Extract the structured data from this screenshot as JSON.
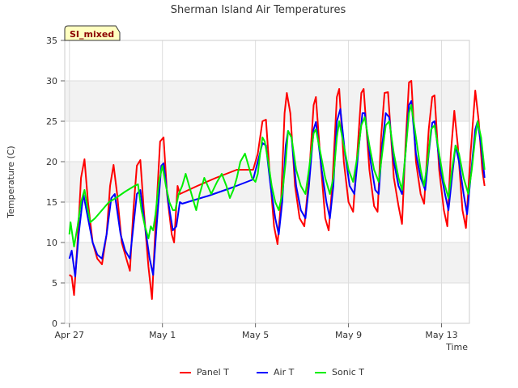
{
  "chart_data": {
    "type": "line",
    "title": "Sherman Island Air Temperatures",
    "badge": "SI_mixed",
    "xlabel": "Time",
    "ylabel": "Temperature (C)",
    "xlim": [
      -0.2,
      17.2
    ],
    "ylim": [
      0,
      35
    ],
    "yticks": [
      0,
      5,
      10,
      15,
      20,
      25,
      30,
      35
    ],
    "xticks": [
      {
        "label": "Apr 27",
        "day": 0
      },
      {
        "label": "May 1",
        "day": 4
      },
      {
        "label": "May 5",
        "day": 8
      },
      {
        "label": "May 9",
        "day": 12
      },
      {
        "label": "May 13",
        "day": 16
      }
    ],
    "grid": true,
    "legend_position": "bottom",
    "colors": {
      "panel": "#ff0000",
      "air": "#0000ff",
      "sonic": "#00ee00",
      "band": "#f2f2f2",
      "grid": "#dddddd"
    },
    "series": [
      {
        "name": "Panel T",
        "key": "panel",
        "points": [
          [
            0.0,
            6.0
          ],
          [
            0.1,
            5.8
          ],
          [
            0.2,
            3.5
          ],
          [
            0.35,
            10.0
          ],
          [
            0.5,
            18.0
          ],
          [
            0.65,
            20.3
          ],
          [
            0.8,
            15.0
          ],
          [
            1.0,
            10.0
          ],
          [
            1.2,
            8.0
          ],
          [
            1.4,
            7.3
          ],
          [
            1.6,
            11.0
          ],
          [
            1.75,
            17.0
          ],
          [
            1.9,
            19.6
          ],
          [
            2.05,
            16.0
          ],
          [
            2.25,
            10.0
          ],
          [
            2.45,
            8.0
          ],
          [
            2.6,
            6.5
          ],
          [
            2.75,
            14.0
          ],
          [
            2.9,
            19.5
          ],
          [
            3.05,
            20.2
          ],
          [
            3.2,
            14.0
          ],
          [
            3.4,
            7.0
          ],
          [
            3.55,
            3.0
          ],
          [
            3.7,
            12.0
          ],
          [
            3.9,
            22.5
          ],
          [
            4.05,
            23.0
          ],
          [
            4.2,
            16.0
          ],
          [
            4.4,
            11.0
          ],
          [
            4.5,
            10.0
          ],
          [
            4.65,
            17.0
          ],
          [
            4.75,
            16.0
          ],
          [
            5.5,
            17.0
          ],
          [
            6.3,
            18.0
          ],
          [
            7.2,
            19.0
          ],
          [
            7.9,
            19.0
          ],
          [
            8.1,
            21.0
          ],
          [
            8.3,
            25.0
          ],
          [
            8.45,
            25.2
          ],
          [
            8.6,
            19.0
          ],
          [
            8.8,
            12.0
          ],
          [
            8.95,
            9.8
          ],
          [
            9.1,
            15.0
          ],
          [
            9.25,
            26.0
          ],
          [
            9.35,
            28.5
          ],
          [
            9.5,
            26.0
          ],
          [
            9.7,
            17.0
          ],
          [
            9.9,
            13.0
          ],
          [
            10.1,
            12.0
          ],
          [
            10.3,
            18.0
          ],
          [
            10.5,
            27.0
          ],
          [
            10.6,
            28.0
          ],
          [
            10.8,
            20.0
          ],
          [
            11.0,
            13.0
          ],
          [
            11.15,
            11.5
          ],
          [
            11.3,
            17.0
          ],
          [
            11.5,
            28.0
          ],
          [
            11.6,
            29.0
          ],
          [
            11.8,
            20.0
          ],
          [
            12.0,
            15.0
          ],
          [
            12.2,
            13.8
          ],
          [
            12.4,
            22.0
          ],
          [
            12.55,
            28.5
          ],
          [
            12.65,
            29.0
          ],
          [
            12.9,
            19.0
          ],
          [
            13.1,
            14.5
          ],
          [
            13.25,
            13.8
          ],
          [
            13.4,
            23.0
          ],
          [
            13.55,
            28.5
          ],
          [
            13.7,
            28.6
          ],
          [
            13.95,
            18.0
          ],
          [
            14.15,
            14.5
          ],
          [
            14.3,
            12.3
          ],
          [
            14.45,
            22.0
          ],
          [
            14.6,
            29.8
          ],
          [
            14.7,
            30.0
          ],
          [
            14.9,
            20.0
          ],
          [
            15.1,
            16.0
          ],
          [
            15.25,
            14.8
          ],
          [
            15.45,
            24.0
          ],
          [
            15.6,
            28.0
          ],
          [
            15.7,
            28.2
          ],
          [
            15.9,
            19.0
          ],
          [
            16.1,
            14.0
          ],
          [
            16.25,
            12.0
          ],
          [
            16.4,
            21.0
          ],
          [
            16.55,
            26.3
          ],
          [
            16.7,
            22.0
          ],
          [
            16.9,
            14.0
          ],
          [
            17.05,
            11.8
          ],
          [
            17.25,
            21.0
          ],
          [
            17.45,
            28.8
          ],
          [
            17.6,
            25.0
          ],
          [
            17.75,
            19.0
          ],
          [
            17.85,
            17.0
          ]
        ]
      },
      {
        "name": "Air T",
        "key": "air",
        "points": [
          [
            0.0,
            8.0
          ],
          [
            0.1,
            9.0
          ],
          [
            0.25,
            5.8
          ],
          [
            0.4,
            11.0
          ],
          [
            0.6,
            16.0
          ],
          [
            0.8,
            13.0
          ],
          [
            1.0,
            10.0
          ],
          [
            1.2,
            8.5
          ],
          [
            1.4,
            8.0
          ],
          [
            1.6,
            11.0
          ],
          [
            1.8,
            15.5
          ],
          [
            1.95,
            16.0
          ],
          [
            2.2,
            11.0
          ],
          [
            2.4,
            9.0
          ],
          [
            2.6,
            8.0
          ],
          [
            2.75,
            12.0
          ],
          [
            2.9,
            16.0
          ],
          [
            3.05,
            16.5
          ],
          [
            3.25,
            12.0
          ],
          [
            3.45,
            8.0
          ],
          [
            3.6,
            6.0
          ],
          [
            3.75,
            12.0
          ],
          [
            3.95,
            19.5
          ],
          [
            4.05,
            19.8
          ],
          [
            4.25,
            15.0
          ],
          [
            4.45,
            11.5
          ],
          [
            4.6,
            12.0
          ],
          [
            4.75,
            15.0
          ],
          [
            4.85,
            14.8
          ],
          [
            6.0,
            15.8
          ],
          [
            7.0,
            16.8
          ],
          [
            7.9,
            17.8
          ],
          [
            8.1,
            20.0
          ],
          [
            8.3,
            22.3
          ],
          [
            8.45,
            22.0
          ],
          [
            8.65,
            17.0
          ],
          [
            8.85,
            13.0
          ],
          [
            9.0,
            11.0
          ],
          [
            9.15,
            15.0
          ],
          [
            9.3,
            22.0
          ],
          [
            9.4,
            23.8
          ],
          [
            9.55,
            23.0
          ],
          [
            9.75,
            17.0
          ],
          [
            9.95,
            14.0
          ],
          [
            10.15,
            13.0
          ],
          [
            10.3,
            17.0
          ],
          [
            10.5,
            24.0
          ],
          [
            10.6,
            24.9
          ],
          [
            10.85,
            19.0
          ],
          [
            11.05,
            15.0
          ],
          [
            11.2,
            13.0
          ],
          [
            11.35,
            17.0
          ],
          [
            11.5,
            25.0
          ],
          [
            11.65,
            26.5
          ],
          [
            11.85,
            21.0
          ],
          [
            12.05,
            17.0
          ],
          [
            12.25,
            16.0
          ],
          [
            12.45,
            22.0
          ],
          [
            12.6,
            26.0
          ],
          [
            12.7,
            26.0
          ],
          [
            12.95,
            20.0
          ],
          [
            13.15,
            16.5
          ],
          [
            13.3,
            16.0
          ],
          [
            13.45,
            22.0
          ],
          [
            13.6,
            26.0
          ],
          [
            13.75,
            25.5
          ],
          [
            13.95,
            20.0
          ],
          [
            14.15,
            17.0
          ],
          [
            14.3,
            16.0
          ],
          [
            14.45,
            21.0
          ],
          [
            14.6,
            27.0
          ],
          [
            14.7,
            27.5
          ],
          [
            14.9,
            21.0
          ],
          [
            15.1,
            18.0
          ],
          [
            15.3,
            16.5
          ],
          [
            15.45,
            21.0
          ],
          [
            15.6,
            24.8
          ],
          [
            15.7,
            25.0
          ],
          [
            15.95,
            19.0
          ],
          [
            16.15,
            16.0
          ],
          [
            16.3,
            14.0
          ],
          [
            16.45,
            18.0
          ],
          [
            16.6,
            22.0
          ],
          [
            16.75,
            20.0
          ],
          [
            16.95,
            16.0
          ],
          [
            17.1,
            13.5
          ],
          [
            17.25,
            18.0
          ],
          [
            17.45,
            24.0
          ],
          [
            17.55,
            25.0
          ],
          [
            17.7,
            22.0
          ],
          [
            17.85,
            18.0
          ]
        ]
      },
      {
        "name": "Sonic T",
        "key": "sonic",
        "points": [
          [
            0.0,
            11.0
          ],
          [
            0.05,
            12.5
          ],
          [
            0.2,
            9.5
          ],
          [
            0.35,
            12.0
          ],
          [
            0.5,
            15.0
          ],
          [
            0.65,
            16.5
          ],
          [
            0.8,
            14.0
          ],
          [
            0.9,
            12.5
          ],
          [
            1.1,
            13.0
          ],
          [
            1.4,
            14.0
          ],
          [
            1.7,
            15.0
          ],
          [
            2.0,
            15.5
          ],
          [
            2.4,
            16.3
          ],
          [
            2.8,
            17.0
          ],
          [
            2.95,
            17.2
          ],
          [
            3.1,
            14.0
          ],
          [
            3.25,
            12.0
          ],
          [
            3.4,
            10.5
          ],
          [
            3.5,
            12.0
          ],
          [
            3.6,
            11.5
          ],
          [
            3.7,
            13.5
          ],
          [
            3.85,
            17.5
          ],
          [
            4.0,
            19.5
          ],
          [
            4.15,
            17.0
          ],
          [
            4.3,
            15.0
          ],
          [
            4.45,
            14.0
          ],
          [
            4.55,
            14.0
          ],
          [
            4.7,
            16.0
          ],
          [
            4.85,
            17.0
          ],
          [
            5.0,
            18.5
          ],
          [
            5.15,
            17.0
          ],
          [
            5.3,
            15.5
          ],
          [
            5.45,
            14.0
          ],
          [
            5.6,
            16.0
          ],
          [
            5.8,
            18.0
          ],
          [
            5.95,
            17.0
          ],
          [
            6.1,
            16.0
          ],
          [
            6.35,
            17.5
          ],
          [
            6.55,
            18.5
          ],
          [
            6.75,
            17.0
          ],
          [
            6.9,
            15.5
          ],
          [
            7.05,
            16.5
          ],
          [
            7.2,
            18.0
          ],
          [
            7.35,
            20.0
          ],
          [
            7.55,
            21.0
          ],
          [
            7.7,
            19.5
          ],
          [
            7.85,
            18.0
          ],
          [
            8.0,
            17.5
          ],
          [
            8.1,
            18.5
          ],
          [
            8.2,
            21.0
          ],
          [
            8.3,
            23.0
          ],
          [
            8.4,
            22.5
          ],
          [
            8.55,
            20.0
          ],
          [
            8.7,
            17.0
          ],
          [
            8.85,
            15.0
          ],
          [
            9.0,
            14.0
          ],
          [
            9.15,
            16.0
          ],
          [
            9.3,
            20.0
          ],
          [
            9.4,
            23.8
          ],
          [
            9.55,
            23.0
          ],
          [
            9.75,
            19.0
          ],
          [
            9.95,
            17.0
          ],
          [
            10.15,
            16.0
          ],
          [
            10.3,
            19.0
          ],
          [
            10.5,
            23.5
          ],
          [
            10.6,
            24.0
          ],
          [
            10.8,
            21.0
          ],
          [
            11.0,
            18.0
          ],
          [
            11.2,
            16.0
          ],
          [
            11.35,
            18.0
          ],
          [
            11.5,
            23.0
          ],
          [
            11.6,
            25.0
          ],
          [
            11.8,
            22.0
          ],
          [
            12.0,
            19.0
          ],
          [
            12.2,
            17.5
          ],
          [
            12.4,
            21.0
          ],
          [
            12.55,
            24.5
          ],
          [
            12.7,
            25.5
          ],
          [
            12.9,
            22.0
          ],
          [
            13.1,
            19.0
          ],
          [
            13.3,
            17.5
          ],
          [
            13.45,
            21.0
          ],
          [
            13.6,
            24.5
          ],
          [
            13.75,
            25.0
          ],
          [
            13.95,
            21.0
          ],
          [
            14.15,
            18.0
          ],
          [
            14.3,
            16.5
          ],
          [
            14.45,
            21.0
          ],
          [
            14.6,
            26.0
          ],
          [
            14.7,
            27.0
          ],
          [
            14.9,
            23.0
          ],
          [
            15.1,
            19.0
          ],
          [
            15.25,
            17.0
          ],
          [
            15.4,
            20.0
          ],
          [
            15.55,
            24.0
          ],
          [
            15.7,
            24.5
          ],
          [
            15.9,
            21.0
          ],
          [
            16.1,
            17.5
          ],
          [
            16.3,
            15.5
          ],
          [
            16.45,
            19.0
          ],
          [
            16.6,
            22.0
          ],
          [
            16.75,
            21.0
          ],
          [
            16.95,
            18.0
          ],
          [
            17.15,
            16.0
          ],
          [
            17.3,
            19.0
          ],
          [
            17.45,
            23.0
          ],
          [
            17.55,
            25.0
          ],
          [
            17.7,
            23.0
          ],
          [
            17.85,
            19.0
          ]
        ]
      }
    ]
  }
}
